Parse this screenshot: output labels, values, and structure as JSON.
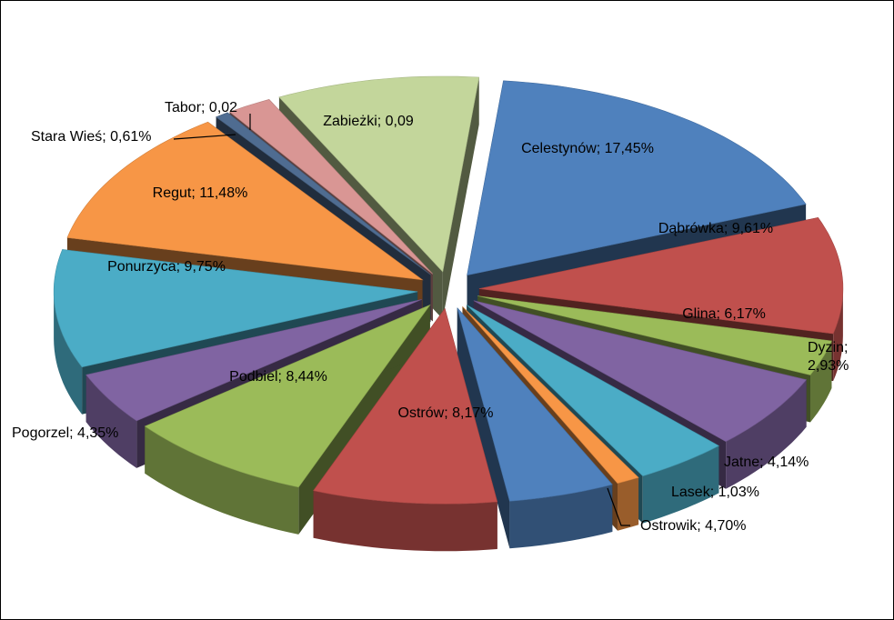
{
  "chart_data": {
    "type": "pie",
    "exploded": true,
    "three_d": true,
    "legend": "none",
    "slices": [
      {
        "name": "Celestynów",
        "label": "Celestynów; 17,45%",
        "value": 17.45,
        "color": "#4F81BD"
      },
      {
        "name": "Dąbrówka",
        "label": "Dąbrówka; 9,61%",
        "value": 9.61,
        "color": "#C0504D"
      },
      {
        "name": "Dyzin",
        "label": "Dyzin;",
        "label2": "2,93%",
        "value": 2.93,
        "color": "#9BBB59"
      },
      {
        "name": "Glina",
        "label": "Glina; 6,17%",
        "value": 6.17,
        "color": "#8064A2"
      },
      {
        "name": "Jatne",
        "label": "Jatne; 4,14%",
        "value": 4.14,
        "color": "#4BACC6"
      },
      {
        "name": "Lasek",
        "label": "Lasek; 1,03%",
        "value": 1.03,
        "color": "#F79646"
      },
      {
        "name": "Ostrowik",
        "label": "Ostrowik; 4,70%",
        "value": 4.7,
        "color": "#4F81BD"
      },
      {
        "name": "Ostrów",
        "label": "Ostrów; 8,17%",
        "value": 8.17,
        "color": "#C0504D"
      },
      {
        "name": "Podbiel",
        "label": "Podbiel; 8,44%",
        "value": 8.44,
        "color": "#9BBB59"
      },
      {
        "name": "Pogorzel",
        "label": "Pogorzel; 4,35%",
        "value": 4.35,
        "color": "#8064A2"
      },
      {
        "name": "Ponurzyca",
        "label": "Ponurzyca; 9,75%",
        "value": 9.75,
        "color": "#4BACC6"
      },
      {
        "name": "Regut",
        "label": "Regut; 11,48%",
        "value": 11.48,
        "color": "#F79646"
      },
      {
        "name": "Stara Wieś",
        "label": "Stara Wieś; 0,61%",
        "value": 0.61,
        "color": "#4F6C91"
      },
      {
        "name": "Tabor",
        "label": "Tabor; 0,02",
        "value": 2.0,
        "color": "#D99694"
      },
      {
        "name": "Zabieżki",
        "label": "Zabieżki; 0,09",
        "value": 9.0,
        "color": "#C3D69B"
      }
    ]
  }
}
